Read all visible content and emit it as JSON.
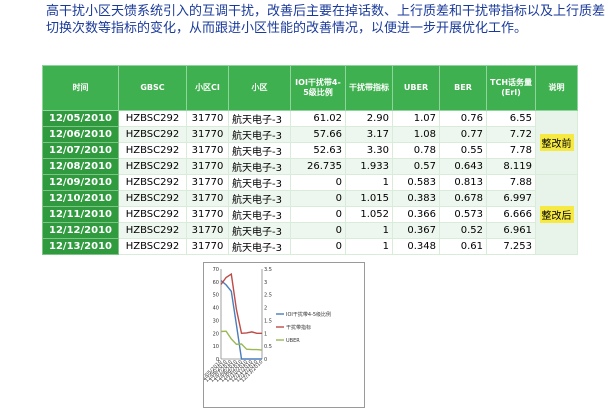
{
  "intro": "高干扰小区天馈系统引入的互调干扰，改善后主要在掉话数、上行质差和干扰带指标以及上行质差切换次数等指标的变化，从而跟进小区性能的改善情况，以便进一步开展优化工作。",
  "table": {
    "headers": [
      "时间",
      "GBSC",
      "小区CI",
      "小区",
      "IOI干扰带4-5级比例",
      "干扰带指标",
      "UBER",
      "BER",
      "TCH话务量(Erl)",
      "说明"
    ],
    "rows": [
      [
        "12/05/2010",
        "HZBSC292",
        "31770",
        "航天电子-3",
        "61.02",
        "2.90",
        "1.07",
        "0.76",
        "6.55"
      ],
      [
        "12/06/2010",
        "HZBSC292",
        "31770",
        "航天电子-3",
        "57.66",
        "3.17",
        "1.08",
        "0.77",
        "7.72"
      ],
      [
        "12/07/2010",
        "HZBSC292",
        "31770",
        "航天电子-3",
        "52.63",
        "3.30",
        "0.78",
        "0.55",
        "7.78"
      ],
      [
        "12/08/2010",
        "HZBSC292",
        "31770",
        "航天电子-3",
        "26.735",
        "1.933",
        "0.57",
        "0.643",
        "8.119"
      ],
      [
        "12/09/2010",
        "HZBSC292",
        "31770",
        "航天电子-3",
        "0",
        "1",
        "0.583",
        "0.813",
        "7.88"
      ],
      [
        "12/10/2010",
        "HZBSC292",
        "31770",
        "航天电子-3",
        "0",
        "1.015",
        "0.383",
        "0.678",
        "6.997"
      ],
      [
        "12/11/2010",
        "HZBSC292",
        "31770",
        "航天电子-3",
        "0",
        "1.052",
        "0.366",
        "0.573",
        "6.666"
      ],
      [
        "12/12/2010",
        "HZBSC292",
        "31770",
        "航天电子-3",
        "0",
        "1",
        "0.367",
        "0.52",
        "6.961"
      ],
      [
        "12/13/2010",
        "HZBSC292",
        "31770",
        "航天电子-3",
        "0",
        "1",
        "0.348",
        "0.61",
        "7.253"
      ]
    ],
    "notes": {
      "before": "整改前",
      "after": "整改后"
    }
  },
  "chart_data": {
    "type": "line",
    "title": "",
    "x": [
      "12/05/2010",
      "12/06/2010",
      "12/07/2010",
      "12/08/2010",
      "12/09/2010",
      "12/10/2010",
      "12/11/2010",
      "12/12/2010",
      "12/13/2010"
    ],
    "series": [
      {
        "name": "IOI干扰带4-5级比例",
        "axis": "left",
        "color": "#4a7ebb",
        "values": [
          61.02,
          57.66,
          52.63,
          26.735,
          0,
          0,
          0,
          0,
          0
        ]
      },
      {
        "name": "干扰带指标",
        "axis": "right",
        "color": "#be4b48",
        "values": [
          2.9,
          3.17,
          3.3,
          1.933,
          1,
          1.015,
          1.052,
          1,
          1
        ]
      },
      {
        "name": "UBER",
        "axis": "right",
        "color": "#98b954",
        "values": [
          1.07,
          1.08,
          0.78,
          0.57,
          0.583,
          0.383,
          0.366,
          0.367,
          0.348
        ]
      }
    ],
    "y_left": {
      "min": 0,
      "max": 70,
      "ticks": [
        "0",
        "10",
        "20",
        "30",
        "40",
        "50",
        "60",
        "70"
      ]
    },
    "y_right": {
      "min": 0,
      "max": 3.5,
      "ticks": [
        "0",
        "0.5",
        "1",
        "1.5",
        "2",
        "2.5",
        "3",
        "3.5"
      ]
    },
    "legend": "right",
    "grid": false
  }
}
